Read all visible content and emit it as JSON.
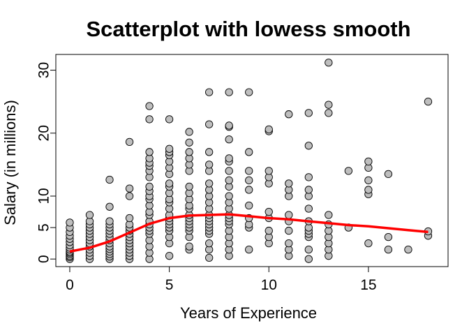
{
  "chart_data": {
    "type": "scatter",
    "title": "Scatterplot with lowess smooth",
    "xlabel": "Years of Experience",
    "ylabel": "Salary (in millions)",
    "xlim": [
      -0.7,
      19.0
    ],
    "ylim": [
      -1.2,
      32.5
    ],
    "x_ticks": [
      0,
      5,
      10,
      15
    ],
    "x_tick_labels": [
      "0",
      "5",
      "10",
      "15"
    ],
    "y_ticks": [
      0,
      5,
      10,
      20,
      30
    ],
    "y_tick_labels": [
      "0",
      "5",
      "10",
      "20",
      "30"
    ],
    "grid": false,
    "point_color": "#bebebe",
    "point_edge_color": "#000000",
    "smooth_color": "#ff0000",
    "points": [
      [
        0,
        0.0
      ],
      [
        0,
        0.3
      ],
      [
        0,
        0.5
      ],
      [
        0,
        0.8
      ],
      [
        0,
        1.0
      ],
      [
        0,
        1.2
      ],
      [
        0,
        1.5
      ],
      [
        0,
        1.8
      ],
      [
        0,
        2.2
      ],
      [
        0,
        2.7
      ],
      [
        0,
        3.2
      ],
      [
        0,
        3.7
      ],
      [
        0,
        4.3
      ],
      [
        0,
        5.0
      ],
      [
        0,
        5.8
      ],
      [
        1,
        0.0
      ],
      [
        1,
        0.5
      ],
      [
        1,
        1.0
      ],
      [
        1,
        1.5
      ],
      [
        1,
        2.0
      ],
      [
        1,
        2.5
      ],
      [
        1,
        3.0
      ],
      [
        1,
        3.5
      ],
      [
        1,
        4.0
      ],
      [
        1,
        4.5
      ],
      [
        1,
        5.0
      ],
      [
        1,
        5.5
      ],
      [
        1,
        6.0
      ],
      [
        1,
        7.0
      ],
      [
        2,
        0.0
      ],
      [
        2,
        0.4
      ],
      [
        2,
        0.8
      ],
      [
        2,
        1.2
      ],
      [
        2,
        1.6
      ],
      [
        2,
        2.0
      ],
      [
        2,
        2.5
      ],
      [
        2,
        3.0
      ],
      [
        2,
        3.5
      ],
      [
        2,
        4.0
      ],
      [
        2,
        4.5
      ],
      [
        2,
        5.0
      ],
      [
        2,
        5.5
      ],
      [
        2,
        6.0
      ],
      [
        2,
        8.3
      ],
      [
        2,
        12.6
      ],
      [
        3,
        0.0
      ],
      [
        3,
        0.5
      ],
      [
        3,
        1.0
      ],
      [
        3,
        1.5
      ],
      [
        3,
        2.0
      ],
      [
        3,
        2.5
      ],
      [
        3,
        3.0
      ],
      [
        3,
        3.5
      ],
      [
        3,
        4.0
      ],
      [
        3,
        4.5
      ],
      [
        3,
        5.0
      ],
      [
        3,
        5.5
      ],
      [
        3,
        6.5
      ],
      [
        3,
        10.0
      ],
      [
        3,
        11.2
      ],
      [
        3,
        18.6
      ],
      [
        4,
        0.0
      ],
      [
        4,
        1.0
      ],
      [
        4,
        2.0
      ],
      [
        4,
        3.0
      ],
      [
        4,
        4.0
      ],
      [
        4,
        4.5
      ],
      [
        4,
        5.0
      ],
      [
        4,
        5.5
      ],
      [
        4,
        6.0
      ],
      [
        4,
        7.0
      ],
      [
        4,
        7.5
      ],
      [
        4,
        8.5
      ],
      [
        4,
        9.5
      ],
      [
        4,
        10.0
      ],
      [
        4,
        10.8
      ],
      [
        4,
        11.5
      ],
      [
        4,
        13.0
      ],
      [
        4,
        14.0
      ],
      [
        4,
        14.8
      ],
      [
        4,
        15.3
      ],
      [
        4,
        16.0
      ],
      [
        4,
        17.0
      ],
      [
        4,
        22.2
      ],
      [
        4,
        24.3
      ],
      [
        5,
        0.5
      ],
      [
        5,
        2.5
      ],
      [
        5,
        3.5
      ],
      [
        5,
        4.5
      ],
      [
        5,
        5.0
      ],
      [
        5,
        5.5
      ],
      [
        5,
        6.0
      ],
      [
        5,
        6.5
      ],
      [
        5,
        7.0
      ],
      [
        5,
        8.0
      ],
      [
        5,
        9.0
      ],
      [
        5,
        9.5
      ],
      [
        5,
        10.5
      ],
      [
        5,
        11.5
      ],
      [
        5,
        12.0
      ],
      [
        5,
        13.5
      ],
      [
        5,
        14.5
      ],
      [
        5,
        15.5
      ],
      [
        5,
        16.5
      ],
      [
        5,
        17.0
      ],
      [
        5,
        17.5
      ],
      [
        5,
        22.2
      ],
      [
        6,
        1.5
      ],
      [
        6,
        2.0
      ],
      [
        6,
        3.5
      ],
      [
        6,
        4.5
      ],
      [
        6,
        5.0
      ],
      [
        6,
        5.5
      ],
      [
        6,
        6.0
      ],
      [
        6,
        6.5
      ],
      [
        6,
        7.0
      ],
      [
        6,
        8.0
      ],
      [
        6,
        8.5
      ],
      [
        6,
        9.5
      ],
      [
        6,
        10.5
      ],
      [
        6,
        11.5
      ],
      [
        6,
        14.0
      ],
      [
        6,
        15.0
      ],
      [
        6,
        16.0
      ],
      [
        6,
        17.0
      ],
      [
        6,
        18.5
      ],
      [
        6,
        20.2
      ],
      [
        7,
        0.2
      ],
      [
        7,
        1.5
      ],
      [
        7,
        2.5
      ],
      [
        7,
        4.0
      ],
      [
        7,
        4.5
      ],
      [
        7,
        5.0
      ],
      [
        7,
        5.5
      ],
      [
        7,
        6.0
      ],
      [
        7,
        6.5
      ],
      [
        7,
        7.0
      ],
      [
        7,
        8.0
      ],
      [
        7,
        9.0
      ],
      [
        7,
        10.0
      ],
      [
        7,
        11.0
      ],
      [
        7,
        12.0
      ],
      [
        7,
        14.0
      ],
      [
        7,
        15.0
      ],
      [
        7,
        17.0
      ],
      [
        7,
        21.4
      ],
      [
        7,
        26.5
      ],
      [
        8,
        0.5
      ],
      [
        8,
        1.5
      ],
      [
        8,
        2.5
      ],
      [
        8,
        3.5
      ],
      [
        8,
        4.5
      ],
      [
        8,
        5.5
      ],
      [
        8,
        6.0
      ],
      [
        8,
        6.5
      ],
      [
        8,
        7.0
      ],
      [
        8,
        8.0
      ],
      [
        8,
        9.0
      ],
      [
        8,
        10.0
      ],
      [
        8,
        11.5
      ],
      [
        8,
        12.5
      ],
      [
        8,
        14.0
      ],
      [
        8,
        15.5
      ],
      [
        8,
        16.0
      ],
      [
        8,
        19.0
      ],
      [
        8,
        21.0
      ],
      [
        8,
        21.2
      ],
      [
        8,
        26.5
      ],
      [
        9,
        1.5
      ],
      [
        9,
        5.0
      ],
      [
        9,
        5.5
      ],
      [
        9,
        6.5
      ],
      [
        9,
        8.5
      ],
      [
        9,
        11.0
      ],
      [
        9,
        12.5
      ],
      [
        9,
        14.0
      ],
      [
        9,
        17.0
      ],
      [
        9,
        26.5
      ],
      [
        10,
        2.5
      ],
      [
        10,
        3.5
      ],
      [
        10,
        4.5
      ],
      [
        10,
        6.5
      ],
      [
        10,
        7.5
      ],
      [
        10,
        12.0
      ],
      [
        10,
        13.0
      ],
      [
        10,
        14.0
      ],
      [
        10,
        20.3
      ],
      [
        10,
        20.6
      ],
      [
        11,
        0.5
      ],
      [
        11,
        1.5
      ],
      [
        11,
        2.5
      ],
      [
        11,
        4.5
      ],
      [
        11,
        6.0
      ],
      [
        11,
        7.0
      ],
      [
        11,
        10.0
      ],
      [
        11,
        11.0
      ],
      [
        11,
        12.0
      ],
      [
        11,
        23.0
      ],
      [
        12,
        0.0
      ],
      [
        12,
        1.5
      ],
      [
        12,
        3.5
      ],
      [
        12,
        4.0
      ],
      [
        12,
        4.5
      ],
      [
        12,
        5.0
      ],
      [
        12,
        6.0
      ],
      [
        12,
        8.0
      ],
      [
        12,
        10.0
      ],
      [
        12,
        11.0
      ],
      [
        12,
        13.0
      ],
      [
        12,
        18.0
      ],
      [
        12,
        23.2
      ],
      [
        13,
        0.5
      ],
      [
        13,
        1.5
      ],
      [
        13,
        2.5
      ],
      [
        13,
        3.5
      ],
      [
        13,
        4.5
      ],
      [
        13,
        5.5
      ],
      [
        13,
        7.0
      ],
      [
        13,
        23.2
      ],
      [
        13,
        24.5
      ],
      [
        13,
        31.2
      ],
      [
        14,
        5.0
      ],
      [
        14,
        14.0
      ],
      [
        15,
        2.5
      ],
      [
        15,
        10.3
      ],
      [
        15,
        11.0
      ],
      [
        15,
        12.5
      ],
      [
        15,
        14.5
      ],
      [
        15,
        15.5
      ],
      [
        16,
        1.5
      ],
      [
        16,
        3.5
      ],
      [
        16,
        13.5
      ],
      [
        17,
        1.5
      ],
      [
        18,
        3.7
      ],
      [
        18,
        4.4
      ],
      [
        18,
        25.0
      ]
    ],
    "smooth": [
      [
        0,
        1.2
      ],
      [
        1,
        1.8
      ],
      [
        2,
        2.8
      ],
      [
        3,
        4.2
      ],
      [
        4,
        5.6
      ],
      [
        5,
        6.5
      ],
      [
        6,
        6.9
      ],
      [
        7,
        7.0
      ],
      [
        8,
        7.1
      ],
      [
        9,
        6.8
      ],
      [
        10,
        6.5
      ],
      [
        11,
        6.3
      ],
      [
        12,
        6.0
      ],
      [
        13,
        5.7
      ],
      [
        14,
        5.4
      ],
      [
        15,
        5.2
      ],
      [
        16,
        4.9
      ],
      [
        17,
        4.6
      ],
      [
        18,
        4.3
      ]
    ]
  }
}
